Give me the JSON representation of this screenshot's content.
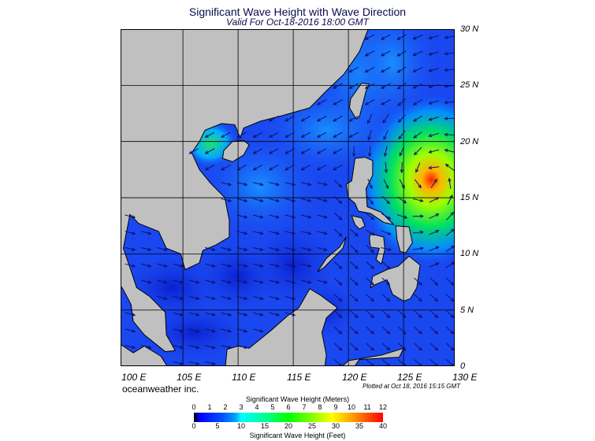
{
  "header": {
    "title": "Significant Wave Height with Wave Direction",
    "subtitle": "Valid For Oct-18-2016 18:00 GMT"
  },
  "map": {
    "region": "South China Sea / Western Pacific",
    "lon_labels": [
      "100 E",
      "105 E",
      "110 E",
      "115 E",
      "120 E",
      "125 E",
      "130 E"
    ],
    "lat_labels": [
      "30 N",
      "25 N",
      "20 N",
      "15 N",
      "10 N",
      "5 N",
      "0"
    ],
    "land_color": "#c0c0c0",
    "sea_color": "#1a48f0",
    "storm_center": {
      "lon": 127.5,
      "lat": 16.6,
      "max_wave_m": 11
    }
  },
  "footer": {
    "brand": "oceanweather inc.",
    "plotted": "Plotted at Oct 18, 2016 15:15 GMT"
  },
  "colorbar": {
    "meters_title": "Significant Wave Height (Meters)",
    "meters_ticks": [
      "0",
      "1",
      "2",
      "3",
      "4",
      "5",
      "6",
      "7",
      "8",
      "9",
      "10",
      "11",
      "12"
    ],
    "feet_title": "Significant Wave Height (Feet)",
    "feet_ticks": [
      "0",
      "5",
      "10",
      "15",
      "20",
      "25",
      "30",
      "35",
      "40"
    ]
  }
}
